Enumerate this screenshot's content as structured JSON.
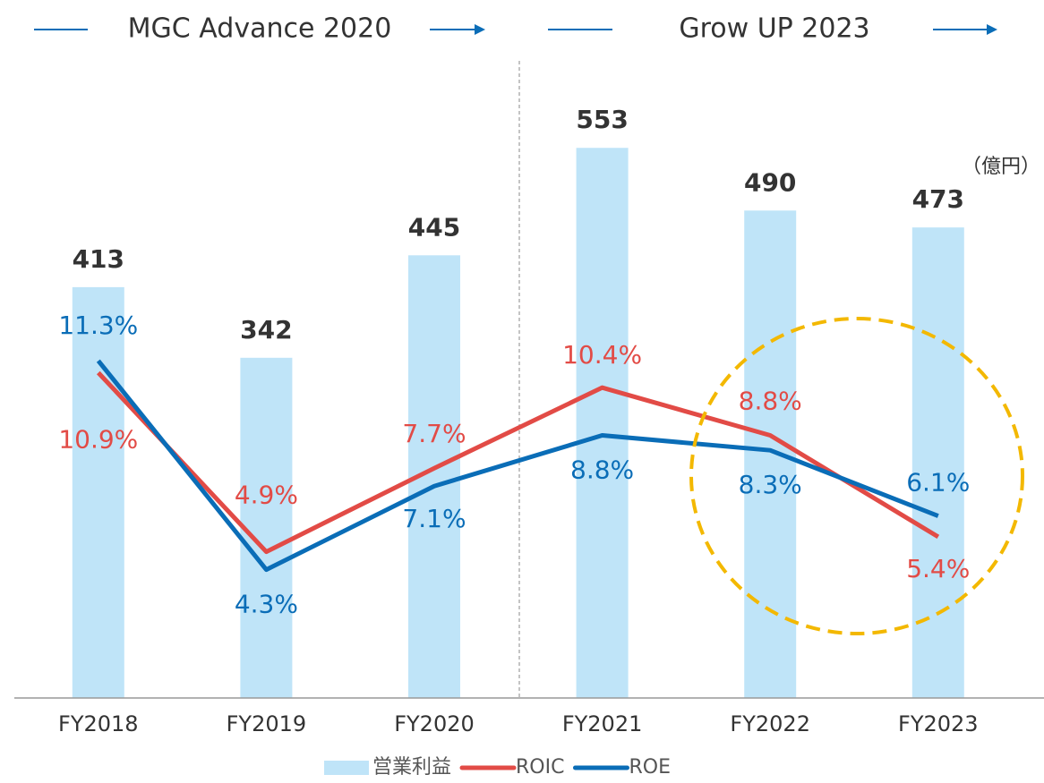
{
  "chart_data": {
    "type": "bar_line",
    "periods": [
      "MGC Advance 2020",
      "Grow UP 2023"
    ],
    "unit": "（億円）",
    "categories": [
      "FY2018",
      "FY2019",
      "FY2020",
      "FY2021",
      "FY2022",
      "FY2023"
    ],
    "ylim": [
      0,
      600
    ],
    "y2lim": [
      0,
      20
    ],
    "series": [
      {
        "name": "営業利益",
        "color": "#bfe4f8",
        "type": "bar",
        "values": [
          413,
          342,
          445,
          553,
          490,
          473
        ]
      },
      {
        "name": "ROIC",
        "color": "#e24b46",
        "type": "line",
        "axis": "y2",
        "values": [
          10.9,
          4.9,
          7.7,
          10.4,
          8.8,
          5.4
        ],
        "value_labels": [
          "10.9%",
          "4.9%",
          "7.7%",
          "10.4%",
          "8.8%",
          "5.4%"
        ]
      },
      {
        "name": "ROE",
        "color": "#0a6db7",
        "type": "line",
        "axis": "y2",
        "values": [
          11.3,
          4.3,
          7.1,
          8.8,
          8.3,
          6.1
        ],
        "value_labels": [
          "11.3%",
          "4.3%",
          "7.1%",
          "8.8%",
          "8.3%",
          "6.1%"
        ]
      }
    ]
  }
}
